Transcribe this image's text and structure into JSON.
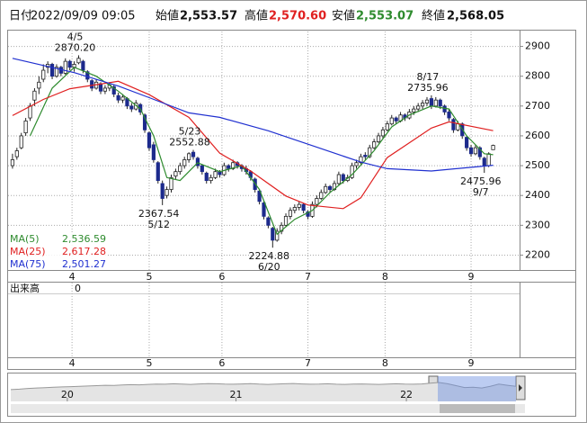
{
  "header": {
    "date": {
      "label": "日付",
      "value": "2022/09/09 09:05"
    },
    "open": {
      "label": "始値",
      "value": {
        "value": 2553.57,
        "label": "2,553.57"
      }
    },
    "high": {
      "label": "高値",
      "value": {
        "value": 2570.6,
        "label": "2,570.60"
      }
    },
    "low": {
      "label": "安値",
      "value": {
        "value": 2553.07,
        "label": "2,553.07"
      }
    },
    "close": {
      "label": "終値",
      "value": {
        "value": 2568.05,
        "label": "2,568.05"
      }
    }
  },
  "chart_data": {
    "type": "candlestick",
    "grid": true,
    "xlim": [
      -1,
      115
    ],
    "ylim": [
      2150,
      2950
    ],
    "yticks": [
      2200,
      2300,
      2400,
      2500,
      2600,
      2700,
      2800,
      2900
    ],
    "xticks": [
      {
        "value": 13.5,
        "label": "4"
      },
      {
        "value": 31,
        "label": "5"
      },
      {
        "value": 47.5,
        "label": "6"
      },
      {
        "value": 67,
        "label": "7"
      },
      {
        "value": 84.5,
        "label": "8"
      },
      {
        "value": 104,
        "label": "9"
      }
    ],
    "up_color": "#ffffff",
    "down_color": "#1c2a8c",
    "ohlc": [
      [
        2500,
        2540,
        2490,
        2520
      ],
      [
        2530,
        2560,
        2520,
        2550
      ],
      [
        2560,
        2610,
        2555,
        2600
      ],
      [
        2610,
        2660,
        2600,
        2650
      ],
      [
        2660,
        2710,
        2650,
        2700
      ],
      [
        2720,
        2760,
        2700,
        2750
      ],
      [
        2760,
        2800,
        2740,
        2780
      ],
      [
        2790,
        2840,
        2780,
        2820
      ],
      [
        2830,
        2850,
        2810,
        2840
      ],
      [
        2840,
        2845,
        2790,
        2800
      ],
      [
        2800,
        2840,
        2795,
        2830
      ],
      [
        2830,
        2835,
        2800,
        2810
      ],
      [
        2810,
        2860,
        2805,
        2850
      ],
      [
        2850,
        2855,
        2820,
        2830
      ],
      [
        2830,
        2850,
        2815,
        2840
      ],
      [
        2845,
        2870.2,
        2840,
        2860
      ],
      [
        2850,
        2855,
        2810,
        2820
      ],
      [
        2815,
        2820,
        2780,
        2790
      ],
      [
        2785,
        2790,
        2750,
        2760
      ],
      [
        2760,
        2790,
        2755,
        2780
      ],
      [
        2775,
        2780,
        2740,
        2750
      ],
      [
        2750,
        2770,
        2740,
        2760
      ],
      [
        2760,
        2780,
        2750,
        2770
      ],
      [
        2765,
        2770,
        2730,
        2740
      ],
      [
        2735,
        2745,
        2710,
        2720
      ],
      [
        2720,
        2740,
        2710,
        2730
      ],
      [
        2725,
        2730,
        2690,
        2700
      ],
      [
        2700,
        2710,
        2680,
        2690
      ],
      [
        2690,
        2720,
        2685,
        2710
      ],
      [
        2705,
        2710,
        2670,
        2680
      ],
      [
        2670,
        2675,
        2610,
        2620
      ],
      [
        2610,
        2615,
        2550,
        2560
      ],
      [
        2570,
        2580,
        2510,
        2520
      ],
      [
        2510,
        2515,
        2440,
        2450
      ],
      [
        2440,
        2450,
        2367.54,
        2390
      ],
      [
        2400,
        2430,
        2390,
        2420
      ],
      [
        2420,
        2470,
        2410,
        2460
      ],
      [
        2465,
        2490,
        2455,
        2480
      ],
      [
        2480,
        2510,
        2470,
        2500
      ],
      [
        2500,
        2530,
        2490,
        2520
      ],
      [
        2520,
        2545,
        2510,
        2540
      ],
      [
        2545,
        2552.88,
        2520,
        2530
      ],
      [
        2525,
        2530,
        2490,
        2500
      ],
      [
        2500,
        2505,
        2470,
        2480
      ],
      [
        2475,
        2480,
        2440,
        2450
      ],
      [
        2450,
        2470,
        2440,
        2460
      ],
      [
        2460,
        2490,
        2455,
        2480
      ],
      [
        2480,
        2485,
        2460,
        2470
      ],
      [
        2470,
        2510,
        2465,
        2500
      ],
      [
        2500,
        2505,
        2480,
        2490
      ],
      [
        2490,
        2520,
        2485,
        2510
      ],
      [
        2510,
        2515,
        2490,
        2500
      ],
      [
        2500,
        2505,
        2480,
        2490
      ],
      [
        2490,
        2500,
        2470,
        2480
      ],
      [
        2480,
        2485,
        2450,
        2460
      ],
      [
        2455,
        2460,
        2410,
        2420
      ],
      [
        2415,
        2420,
        2370,
        2380
      ],
      [
        2375,
        2380,
        2320,
        2330
      ],
      [
        2325,
        2330,
        2290,
        2300
      ],
      [
        2290,
        2295,
        2224.88,
        2250
      ],
      [
        2250,
        2290,
        2245,
        2280
      ],
      [
        2280,
        2310,
        2270,
        2300
      ],
      [
        2300,
        2340,
        2295,
        2330
      ],
      [
        2330,
        2360,
        2320,
        2350
      ],
      [
        2350,
        2370,
        2340,
        2360
      ],
      [
        2360,
        2380,
        2350,
        2370
      ],
      [
        2370,
        2375,
        2340,
        2350
      ],
      [
        2345,
        2350,
        2320,
        2330
      ],
      [
        2330,
        2380,
        2325,
        2370
      ],
      [
        2370,
        2400,
        2360,
        2390
      ],
      [
        2390,
        2420,
        2385,
        2410
      ],
      [
        2410,
        2440,
        2405,
        2430
      ],
      [
        2430,
        2435,
        2410,
        2420
      ],
      [
        2420,
        2450,
        2415,
        2440
      ],
      [
        2440,
        2480,
        2435,
        2470
      ],
      [
        2470,
        2475,
        2440,
        2450
      ],
      [
        2450,
        2470,
        2445,
        2460
      ],
      [
        2460,
        2510,
        2455,
        2500
      ],
      [
        2500,
        2520,
        2490,
        2510
      ],
      [
        2510,
        2540,
        2505,
        2530
      ],
      [
        2535,
        2545,
        2520,
        2530
      ],
      [
        2530,
        2570,
        2525,
        2560
      ],
      [
        2560,
        2590,
        2555,
        2580
      ],
      [
        2580,
        2610,
        2575,
        2600
      ],
      [
        2600,
        2630,
        2590,
        2620
      ],
      [
        2620,
        2650,
        2615,
        2640
      ],
      [
        2640,
        2670,
        2635,
        2660
      ],
      [
        2660,
        2665,
        2640,
        2650
      ],
      [
        2650,
        2680,
        2645,
        2670
      ],
      [
        2670,
        2675,
        2650,
        2660
      ],
      [
        2660,
        2690,
        2655,
        2680
      ],
      [
        2680,
        2700,
        2670,
        2690
      ],
      [
        2690,
        2710,
        2680,
        2700
      ],
      [
        2700,
        2720,
        2690,
        2710
      ],
      [
        2710,
        2730,
        2700,
        2720
      ],
      [
        2725,
        2735.96,
        2690,
        2700
      ],
      [
        2700,
        2730,
        2695,
        2720
      ],
      [
        2720,
        2725,
        2690,
        2700
      ],
      [
        2700,
        2705,
        2670,
        2680
      ],
      [
        2680,
        2690,
        2650,
        2660
      ],
      [
        2655,
        2660,
        2610,
        2620
      ],
      [
        2620,
        2650,
        2615,
        2640
      ],
      [
        2640,
        2645,
        2590,
        2600
      ],
      [
        2595,
        2600,
        2550,
        2560
      ],
      [
        2560,
        2570,
        2530,
        2540
      ],
      [
        2540,
        2570,
        2535,
        2560
      ],
      [
        2560,
        2565,
        2520,
        2530
      ],
      [
        2525,
        2530,
        2475.96,
        2500
      ],
      [
        2500,
        2545,
        2495,
        2540
      ],
      [
        2553.57,
        2570.6,
        2553.07,
        2568.05
      ]
    ],
    "series": [
      {
        "name": "MA(5)",
        "color": "#2e8b2e",
        "legend_value": {
          "value": 2536.59,
          "label": "2,536.59"
        },
        "x": [
          4,
          9,
          14,
          19,
          24,
          29,
          32,
          35,
          38,
          42,
          47,
          52,
          56,
          60,
          64,
          68,
          72,
          77,
          82,
          86,
          90,
          95,
          99,
          103,
          107,
          109
        ],
        "values": [
          2600,
          2760,
          2830,
          2800,
          2750,
          2690,
          2600,
          2460,
          2450,
          2510,
          2480,
          2500,
          2420,
          2270,
          2320,
          2350,
          2410,
          2470,
          2550,
          2630,
          2670,
          2700,
          2690,
          2600,
          2540,
          2536.59
        ]
      },
      {
        "name": "MA(25)",
        "color": "#e02020",
        "legend_value": {
          "value": 2617.28,
          "label": "2,617.28"
        },
        "x": [
          0,
          7,
          13,
          24,
          31,
          40,
          47,
          54,
          62,
          67,
          75,
          79,
          85,
          95,
          99,
          109
        ],
        "values": [
          2668,
          2722,
          2758,
          2783,
          2738,
          2662,
          2542,
          2482,
          2398,
          2368,
          2356,
          2392,
          2527,
          2626,
          2647,
          2617.28
        ]
      },
      {
        "name": "MA(75)",
        "color": "#2030d0",
        "legend_value": {
          "value": 2501.27,
          "label": "2,501.27"
        },
        "x": [
          0,
          14,
          24,
          31,
          40,
          47,
          58,
          67,
          79,
          85,
          95,
          109
        ],
        "values": [
          2860,
          2812,
          2767,
          2728,
          2677,
          2662,
          2617,
          2572,
          2512,
          2490,
          2482,
          2501.27
        ]
      }
    ],
    "annotations": [
      {
        "date": "4/5",
        "x": 15,
        "price": {
          "value": 2870.2,
          "label": "2870.20"
        }
      },
      {
        "date": "5/12",
        "x": 34,
        "price": {
          "value": 2367.54,
          "label": "2367.54"
        }
      },
      {
        "date": "5/23",
        "x": 41,
        "price": {
          "value": 2552.88,
          "label": "2552.88"
        }
      },
      {
        "date": "6/20",
        "x": 59,
        "price": {
          "value": 2224.88,
          "label": "2224.88"
        }
      },
      {
        "date": "8/17",
        "x": 95,
        "price": {
          "value": 2735.96,
          "label": "2735.96"
        }
      },
      {
        "date": "9/7",
        "x": 107,
        "price": {
          "value": 2475.96,
          "label": "2475.96"
        }
      }
    ]
  },
  "volume": {
    "label": "出来高",
    "value": 0
  },
  "navigator": {
    "xlim": [
      0,
      59
    ],
    "ylim": [
      1600,
      3200
    ],
    "ticks": [
      {
        "value": 6.6,
        "label": "20"
      },
      {
        "value": 26.3,
        "label": "21"
      },
      {
        "value": 46.2,
        "label": "22"
      }
    ],
    "values": [
      2350,
      2380,
      2420,
      2450,
      2470,
      2500,
      2520,
      2540,
      2560,
      2580,
      2600,
      2620,
      2610,
      2640,
      2660,
      2650,
      2680,
      2700,
      2690,
      2720,
      2700,
      2680,
      2710,
      2730,
      2720,
      2700,
      2690,
      2710,
      2730,
      2700,
      2680,
      2700,
      2720,
      2740,
      2710,
      2690,
      2700,
      2720,
      2690,
      2680,
      2700,
      2710,
      2690,
      2680,
      2700,
      2720,
      2700,
      2690,
      2710,
      2760,
      2800,
      2720,
      2600,
      2480,
      2500,
      2450,
      2560,
      2700,
      2620,
      2560
    ]
  }
}
